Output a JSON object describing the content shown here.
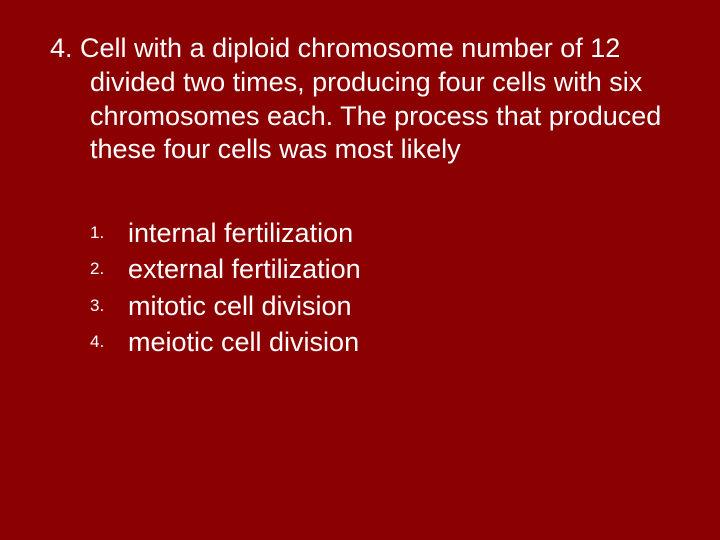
{
  "slide": {
    "background_color": "#8b0000",
    "text_color": "#ffffff",
    "font_family": "Verdana",
    "question": {
      "number": "4.",
      "text": "Cell with a diploid chromosome number of 12 divided two times, producing four cells with six chromosomes each. The process that produced these four cells was most likely",
      "fontsize": 27
    },
    "options": {
      "items": [
        "internal fertilization",
        "external fertilization",
        "mitotic cell division",
        "meiotic cell division"
      ],
      "fontsize": 27,
      "marker_fontsize": 17
    }
  }
}
